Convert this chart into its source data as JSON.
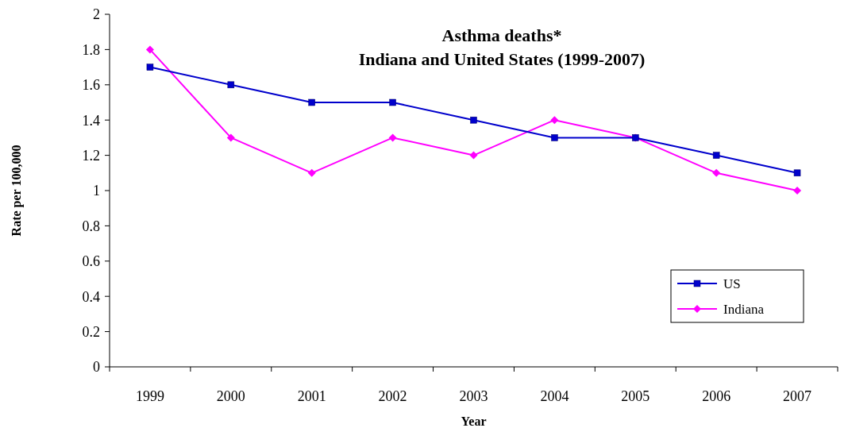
{
  "chart_data": {
    "type": "line",
    "title": "Asthma deaths*\nIndiana and United States (1999-2007)",
    "xlabel": "Year",
    "ylabel": "Rate per 100,000",
    "categories": [
      "1999",
      "2000",
      "2001",
      "2002",
      "2003",
      "2004",
      "2005",
      "2006",
      "2007"
    ],
    "series": [
      {
        "name": "US",
        "color": "#0000cc",
        "marker": "square",
        "values": [
          1.7,
          1.6,
          1.5,
          1.5,
          1.4,
          1.3,
          1.3,
          1.2,
          1.1
        ]
      },
      {
        "name": "Indiana",
        "color": "#ff00ff",
        "marker": "diamond",
        "values": [
          1.8,
          1.3,
          1.1,
          1.3,
          1.2,
          1.4,
          1.3,
          1.1,
          1.0
        ]
      }
    ],
    "ylim": [
      0,
      2
    ],
    "yticks": [
      0,
      0.2,
      0.4,
      0.6,
      0.8,
      1,
      1.2,
      1.4,
      1.6,
      1.8,
      2
    ],
    "grid": false,
    "legend": "bottom right",
    "line_style": "solid"
  }
}
